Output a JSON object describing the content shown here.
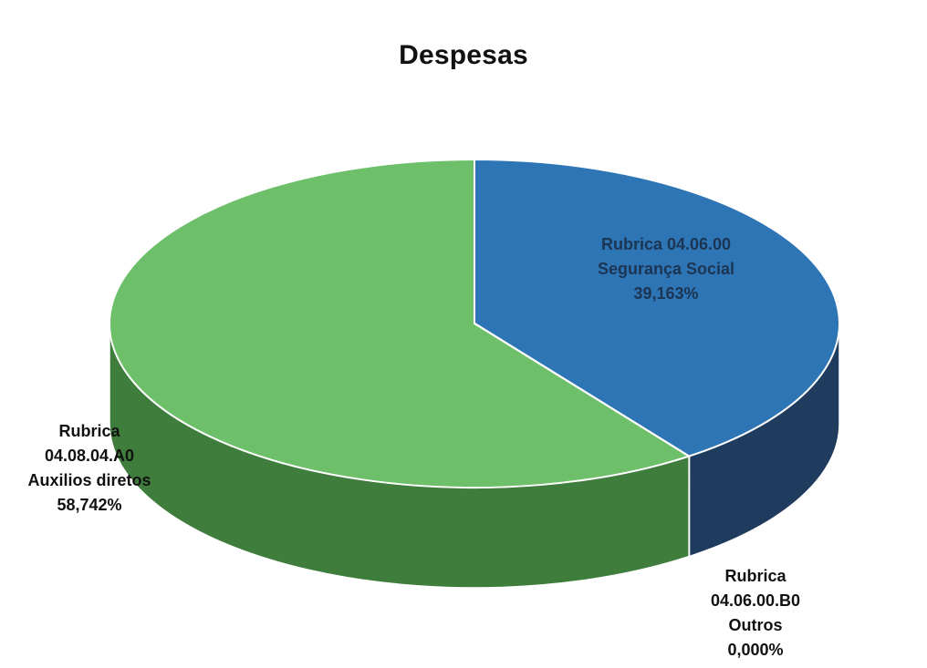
{
  "chart_data": {
    "type": "pie",
    "title": "Despesas",
    "style": "3d",
    "slices": [
      {
        "key": "seguranca",
        "lines": [
          "Rubrica 04.06.00",
          "Segurança Social",
          "39,163%"
        ],
        "value": 39.163,
        "color": "#2e75b6",
        "side_color": "#1f3b5e"
      },
      {
        "key": "outros",
        "lines": [
          "Rubrica",
          "04.06.00.B0",
          "Outros",
          "0,000%"
        ],
        "value": 0.0,
        "color": "#ffffff",
        "side_color": "#ffffff"
      },
      {
        "key": "auxilios",
        "lines": [
          "Rubrica",
          "04.08.04.A0",
          "Auxilios diretos",
          "58,742%"
        ],
        "value": 58.742,
        "color": "#6dbf6a",
        "side_color": "#3f7d3c"
      }
    ]
  }
}
